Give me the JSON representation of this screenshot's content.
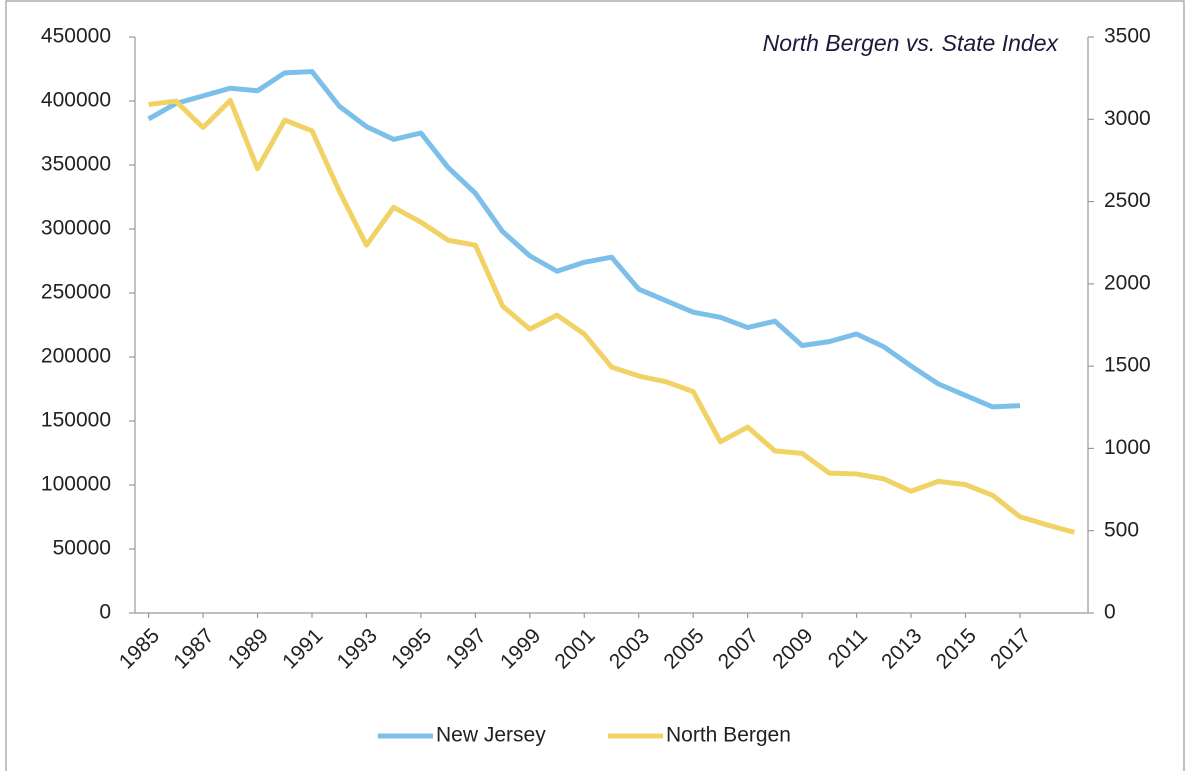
{
  "chart_data": {
    "type": "line",
    "title": "North Bergen vs. State Index",
    "x": [
      1985,
      1986,
      1987,
      1988,
      1989,
      1990,
      1991,
      1992,
      1993,
      1994,
      1995,
      1996,
      1997,
      1998,
      1999,
      2000,
      2001,
      2002,
      2003,
      2004,
      2005,
      2006,
      2007,
      2008,
      2009,
      2010,
      2011,
      2012,
      2013,
      2014,
      2015,
      2016,
      2017,
      2018,
      2019
    ],
    "xlim": [
      1984.5,
      2019.5
    ],
    "xticks": [
      1985,
      1987,
      1989,
      1991,
      1993,
      1995,
      1997,
      1999,
      2001,
      2003,
      2005,
      2007,
      2009,
      2011,
      2013,
      2015,
      2017
    ],
    "ylim": [
      0,
      450000
    ],
    "yticks": [
      0,
      50000,
      100000,
      150000,
      200000,
      250000,
      300000,
      350000,
      400000,
      450000
    ],
    "y2lim": [
      0,
      3500
    ],
    "y2ticks": [
      0,
      500,
      1000,
      1500,
      2000,
      2500,
      3000,
      3500
    ],
    "grid": false,
    "legend": "bottom",
    "series": [
      {
        "name": "New Jersey",
        "color": "#7cc0ea",
        "values": [
          386000,
          398000,
          404000,
          410000,
          408000,
          422000,
          423000,
          396000,
          380000,
          370000,
          375000,
          348000,
          328000,
          298000,
          279000,
          267000,
          274000,
          278000,
          253000,
          244000,
          235000,
          231000,
          223000,
          228000,
          209000,
          212000,
          218000,
          208000,
          193000,
          179000,
          170000,
          161000,
          162000,
          null,
          null
        ]
      },
      {
        "name": "North Bergen",
        "color": "#f1d264",
        "axis": "y2",
        "values": [
          3090,
          3110,
          2950,
          3115,
          2700,
          2995,
          2930,
          2565,
          2235,
          2465,
          2375,
          2265,
          2235,
          1865,
          1725,
          1810,
          1695,
          1495,
          1440,
          1405,
          1345,
          1040,
          1130,
          985,
          970,
          850,
          845,
          815,
          740,
          800,
          780,
          715,
          585,
          535,
          490
        ]
      }
    ]
  }
}
